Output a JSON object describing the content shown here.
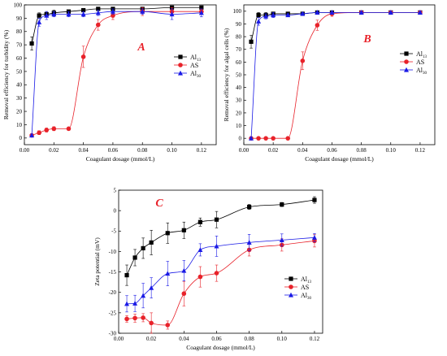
{
  "figure": {
    "background": "#ffffff",
    "colors": {
      "Al13": "#000000",
      "AS": "#e8222a",
      "Al30": "#1a1ae6"
    }
  },
  "chart_data": [
    {
      "type": "scatter",
      "panel_label": "A",
      "xlabel": "Coagulant dosage (mmol/L)",
      "ylabel": "Removal efficiency for turbidity (%)",
      "xlim": [
        0,
        0.13
      ],
      "ylim": [
        -5,
        100
      ],
      "xticks": [
        "0.00",
        "0.02",
        "0.04",
        "0.06",
        "0.08",
        "0.10",
        "0.12"
      ],
      "yticks": [
        "0",
        "10",
        "20",
        "30",
        "40",
        "50",
        "60",
        "70",
        "80",
        "90",
        "100"
      ],
      "legend": "right",
      "series": [
        {
          "name": "Al",
          "subscript": "13",
          "marker": "square",
          "color": "#000000",
          "x": [
            0.005,
            0.01,
            0.015,
            0.02,
            0.03,
            0.04,
            0.05,
            0.06,
            0.08,
            0.1,
            0.12
          ],
          "y": [
            71,
            92,
            93,
            94,
            95,
            96,
            97,
            97,
            97,
            98,
            98
          ],
          "err": [
            5,
            2,
            2,
            2,
            1,
            1,
            1,
            1,
            1,
            1,
            1
          ]
        },
        {
          "name": "AS",
          "subscript": "",
          "marker": "circle",
          "color": "#e8222a",
          "x": [
            0.005,
            0.01,
            0.015,
            0.02,
            0.03,
            0.04,
            0.05,
            0.06,
            0.08,
            0.1,
            0.12
          ],
          "y": [
            2,
            4,
            6,
            7,
            7,
            61,
            85,
            92,
            95,
            95,
            95
          ],
          "err": [
            1,
            1.5,
            1.5,
            1.5,
            1,
            8,
            4,
            3,
            3,
            3,
            2
          ]
        },
        {
          "name": "Al",
          "subscript": "30",
          "marker": "triangle",
          "color": "#1a1ae6",
          "x": [
            0.005,
            0.01,
            0.015,
            0.02,
            0.03,
            0.04,
            0.05,
            0.06,
            0.08,
            0.1,
            0.12
          ],
          "y": [
            2,
            87,
            92,
            93,
            93,
            93,
            94,
            95,
            95,
            93,
            94
          ],
          "err": [
            1,
            3,
            3,
            2,
            2,
            2,
            2,
            2,
            2,
            4,
            3
          ]
        }
      ]
    },
    {
      "type": "scatter",
      "panel_label": "B",
      "xlabel": "Coagulant dosage (mmol/L)",
      "ylabel": "Removal efficiency for algal cells (%)",
      "xlim": [
        0,
        0.13
      ],
      "ylim": [
        -5,
        105
      ],
      "xticks": [
        "0.00",
        "0.02",
        "0.04",
        "0.06",
        "0.08",
        "0.10",
        "0.12"
      ],
      "yticks": [
        "0",
        "10",
        "20",
        "30",
        "40",
        "50",
        "60",
        "70",
        "80",
        "90",
        "100"
      ],
      "legend": "right",
      "series": [
        {
          "name": "Al",
          "subscript": "13",
          "marker": "square",
          "color": "#000000",
          "x": [
            0.005,
            0.01,
            0.015,
            0.02,
            0.03,
            0.04,
            0.05,
            0.06,
            0.08,
            0.1,
            0.12
          ],
          "y": [
            76,
            97,
            97,
            98,
            98,
            98,
            99,
            99,
            99,
            99,
            99
          ],
          "err": [
            5,
            2,
            2,
            1,
            1,
            1,
            1,
            1,
            1,
            1,
            1
          ]
        },
        {
          "name": "AS",
          "subscript": "",
          "marker": "circle",
          "color": "#e8222a",
          "x": [
            0.005,
            0.01,
            0.015,
            0.02,
            0.03,
            0.04,
            0.05,
            0.06,
            0.08,
            0.1,
            0.12
          ],
          "y": [
            0,
            0,
            0,
            0,
            0,
            61,
            89,
            98,
            99,
            99,
            99
          ],
          "err": [
            0,
            0,
            0,
            0,
            0,
            7,
            4,
            2,
            1,
            1,
            1
          ]
        },
        {
          "name": "Al",
          "subscript": "30",
          "marker": "triangle",
          "color": "#1a1ae6",
          "x": [
            0.005,
            0.01,
            0.015,
            0.02,
            0.03,
            0.04,
            0.05,
            0.06,
            0.08,
            0.1,
            0.12
          ],
          "y": [
            0,
            92,
            96,
            97,
            97,
            98,
            99,
            99,
            99,
            99,
            99
          ],
          "err": [
            1,
            3,
            2,
            2,
            1,
            1,
            1,
            1,
            1,
            1,
            1
          ]
        }
      ]
    },
    {
      "type": "scatter",
      "panel_label": "C",
      "xlabel": "Coagulant dosage (mmol/L)",
      "ylabel": "Zeta potential (mV)",
      "xlim": [
        0,
        0.125
      ],
      "ylim": [
        -30,
        5
      ],
      "xticks": [
        "0.00",
        "0.02",
        "0.04",
        "0.06",
        "0.08",
        "0.10",
        "0.12"
      ],
      "yticks": [
        "-30",
        "-25",
        "-20",
        "-15",
        "-10",
        "-5",
        "0",
        "5"
      ],
      "legend": "right",
      "series": [
        {
          "name": "Al",
          "subscript": "13",
          "marker": "square",
          "color": "#000000",
          "x": [
            0.005,
            0.01,
            0.015,
            0.02,
            0.03,
            0.04,
            0.05,
            0.06,
            0.08,
            0.1,
            0.12
          ],
          "y": [
            -15.8,
            -11.5,
            -9.2,
            -7.8,
            -5.5,
            -4.8,
            -2.8,
            -2.2,
            0.9,
            1.5,
            2.6
          ],
          "err": [
            2.5,
            2,
            2.5,
            3,
            2.5,
            2,
            1,
            2,
            0.6,
            0.5,
            0.8
          ]
        },
        {
          "name": "AS",
          "subscript": "",
          "marker": "circle",
          "color": "#e8222a",
          "x": [
            0.005,
            0.01,
            0.015,
            0.02,
            0.03,
            0.04,
            0.05,
            0.06,
            0.08,
            0.1,
            0.12
          ],
          "y": [
            -26.5,
            -26.3,
            -26.2,
            -27.5,
            -28,
            -20.3,
            -16.2,
            -15.3,
            -9.6,
            -8.4,
            -7.4
          ],
          "err": [
            0.8,
            1,
            1,
            2.5,
            1,
            3,
            2.5,
            2,
            1.5,
            1.5,
            1.5
          ]
        },
        {
          "name": "Al",
          "subscript": "30",
          "marker": "triangle",
          "color": "#1a1ae6",
          "x": [
            0.005,
            0.01,
            0.015,
            0.02,
            0.03,
            0.04,
            0.05,
            0.06,
            0.08,
            0.1,
            0.12
          ],
          "y": [
            -22.8,
            -22.7,
            -20.8,
            -18.9,
            -15.4,
            -14.7,
            -9.6,
            -8.7,
            -7.8,
            -7.2,
            -6.6
          ],
          "err": [
            2,
            2,
            3,
            2.5,
            3,
            2.5,
            1.5,
            2.5,
            2,
            1.5,
            1
          ]
        }
      ]
    }
  ]
}
